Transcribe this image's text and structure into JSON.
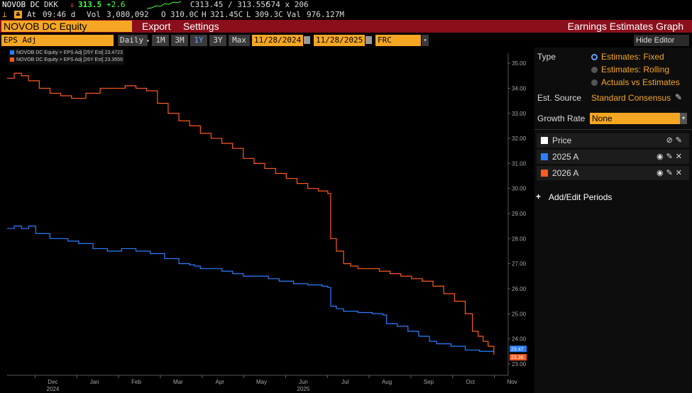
{
  "ticker": {
    "symbol": "NOVOB DC",
    "currency": "DKK",
    "arrow": "↓",
    "last": "313.5",
    "change": "+2.6",
    "bid_ask": "C313.45 / 313.55C",
    "size": "574 x 206",
    "at_label": "At",
    "time": "09:46 d",
    "vol_label": "Vol",
    "volume": "3,080,092",
    "open_label": "O",
    "open": "310.0C",
    "high_label": "H",
    "high": "321.45C",
    "low_label": "L",
    "low": "309.3C",
    "val_label": "Val",
    "value": "976.127M"
  },
  "toolbar": {
    "security": "NOVOB DC Equity",
    "export": "Export",
    "settings": "Settings",
    "title": "Earnings Estimates Graph"
  },
  "controls": {
    "field": "EPS Adj",
    "frequency": "Daily",
    "ranges": [
      "1M",
      "3M",
      "1Y",
      "3Y",
      "Max"
    ],
    "active_range": "1Y",
    "start_date": "11/28/2024",
    "end_date": "11/28/2025",
    "source": "FRC (DKK)",
    "hide_editor": "Hide Editor"
  },
  "legend": [
    {
      "label": "NOVOB DC Equity > EPS Adj [25Y Est]",
      "value": "23.4723",
      "color": "#2a7fff"
    },
    {
      "label": "NOVOB DC Equity > EPS Adj [26Y Est]",
      "value": "23.3559",
      "color": "#ff5a1f"
    }
  ],
  "chart_data": {
    "type": "line",
    "x_ticks": [
      "Dec",
      "Jan",
      "Feb",
      "Mar",
      "Apr",
      "May",
      "Jun",
      "Jul",
      "Aug",
      "Sep",
      "Oct",
      "Nov"
    ],
    "x_year_labels": [
      {
        "month": "Dec",
        "year": "2024"
      },
      {
        "month": "Jun",
        "year": "2025"
      }
    ],
    "ylim": [
      22.6,
      35.4
    ],
    "y_ticks": [
      "23.00",
      "24.00",
      "25.00",
      "26.00",
      "27.00",
      "28.00",
      "29.00",
      "30.00",
      "31.00",
      "32.00",
      "33.00",
      "34.00",
      "35.00"
    ],
    "end_labels": [
      "23.47",
      "23.36"
    ],
    "series": [
      {
        "name": "2025 A",
        "color": "#2a7fff",
        "t": [
          0,
          10,
          20,
          30,
          40,
          60,
          70,
          85,
          100,
          120,
          140,
          160,
          180,
          200,
          220,
          240,
          255,
          262,
          270,
          285,
          300,
          315,
          330,
          350,
          365,
          380,
          400,
          420,
          440,
          448,
          452,
          460,
          470,
          490,
          510,
          525,
          530,
          545,
          560,
          575,
          590,
          600,
          620,
          640,
          660,
          680
        ],
        "values": [
          28.4,
          28.5,
          28.4,
          28.5,
          28.2,
          28.0,
          28.0,
          27.9,
          27.8,
          27.6,
          27.5,
          27.6,
          27.5,
          27.4,
          27.2,
          27.0,
          26.95,
          26.9,
          26.8,
          26.8,
          26.7,
          26.6,
          26.5,
          26.5,
          26.4,
          26.3,
          26.2,
          26.15,
          26.1,
          26.05,
          25.3,
          25.2,
          25.1,
          25.05,
          25.0,
          24.95,
          24.6,
          24.5,
          24.3,
          24.1,
          23.9,
          23.8,
          23.7,
          23.55,
          23.5,
          23.47
        ]
      },
      {
        "name": "2026 A",
        "color": "#ff5a1f",
        "t": [
          0,
          10,
          20,
          30,
          45,
          60,
          75,
          90,
          110,
          130,
          150,
          165,
          180,
          195,
          210,
          225,
          240,
          255,
          270,
          285,
          300,
          315,
          330,
          345,
          360,
          375,
          390,
          405,
          420,
          435,
          448,
          452,
          460,
          470,
          480,
          490,
          505,
          520,
          535,
          550,
          565,
          580,
          595,
          610,
          625,
          640,
          650,
          658,
          665,
          672,
          680
        ],
        "values": [
          34.4,
          34.6,
          34.5,
          34.3,
          34.0,
          33.8,
          33.7,
          33.6,
          33.8,
          34.0,
          34.0,
          34.1,
          34.0,
          33.9,
          33.4,
          33.0,
          32.7,
          32.5,
          32.2,
          32.0,
          31.8,
          31.6,
          31.2,
          31.0,
          30.8,
          30.6,
          30.4,
          30.2,
          30.0,
          29.9,
          29.8,
          28.0,
          27.5,
          27.0,
          26.9,
          26.8,
          26.8,
          26.7,
          26.6,
          26.5,
          26.4,
          26.3,
          26.1,
          25.8,
          25.5,
          25.0,
          24.3,
          24.1,
          23.9,
          23.7,
          23.36
        ]
      }
    ]
  },
  "panel": {
    "type_label": "Type",
    "type_options": [
      "Estimates: Fixed",
      "Estimates: Rolling",
      "Actuals vs Estimates"
    ],
    "type_selected": 0,
    "source_label": "Est. Source",
    "source_value": "Standard Consensus",
    "growth_label": "Growth Rate",
    "growth_value": "None",
    "periods": [
      {
        "name": "Price",
        "color": "#ffffff"
      },
      {
        "name": "2025 A",
        "color": "#2a7fff"
      },
      {
        "name": "2026 A",
        "color": "#ff5a1f"
      }
    ],
    "add_label": "Add/Edit Periods"
  }
}
